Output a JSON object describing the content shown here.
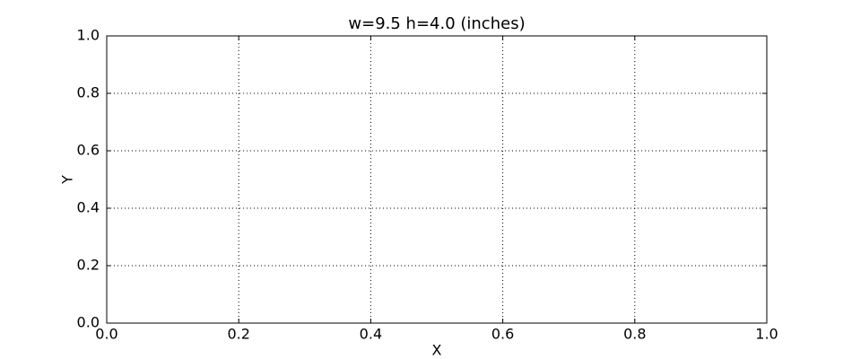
{
  "chart_data": {
    "type": "line",
    "title": "w=9.5 h=4.0 (inches)",
    "x_label": "X",
    "y_label": "Y",
    "xlim": [
      0,
      1
    ],
    "ylim": [
      0,
      1
    ],
    "xticks": [
      {
        "value": 0,
        "label": "0.0"
      },
      0.2,
      0.4,
      0.6,
      0.8,
      {
        "value": 1,
        "label": "1.0"
      }
    ],
    "yticks": [
      {
        "value": 0,
        "label": "0.0"
      },
      0.2,
      0.4,
      0.6,
      0.8,
      {
        "value": 1,
        "label": "1.0"
      }
    ],
    "grid": true
  }
}
